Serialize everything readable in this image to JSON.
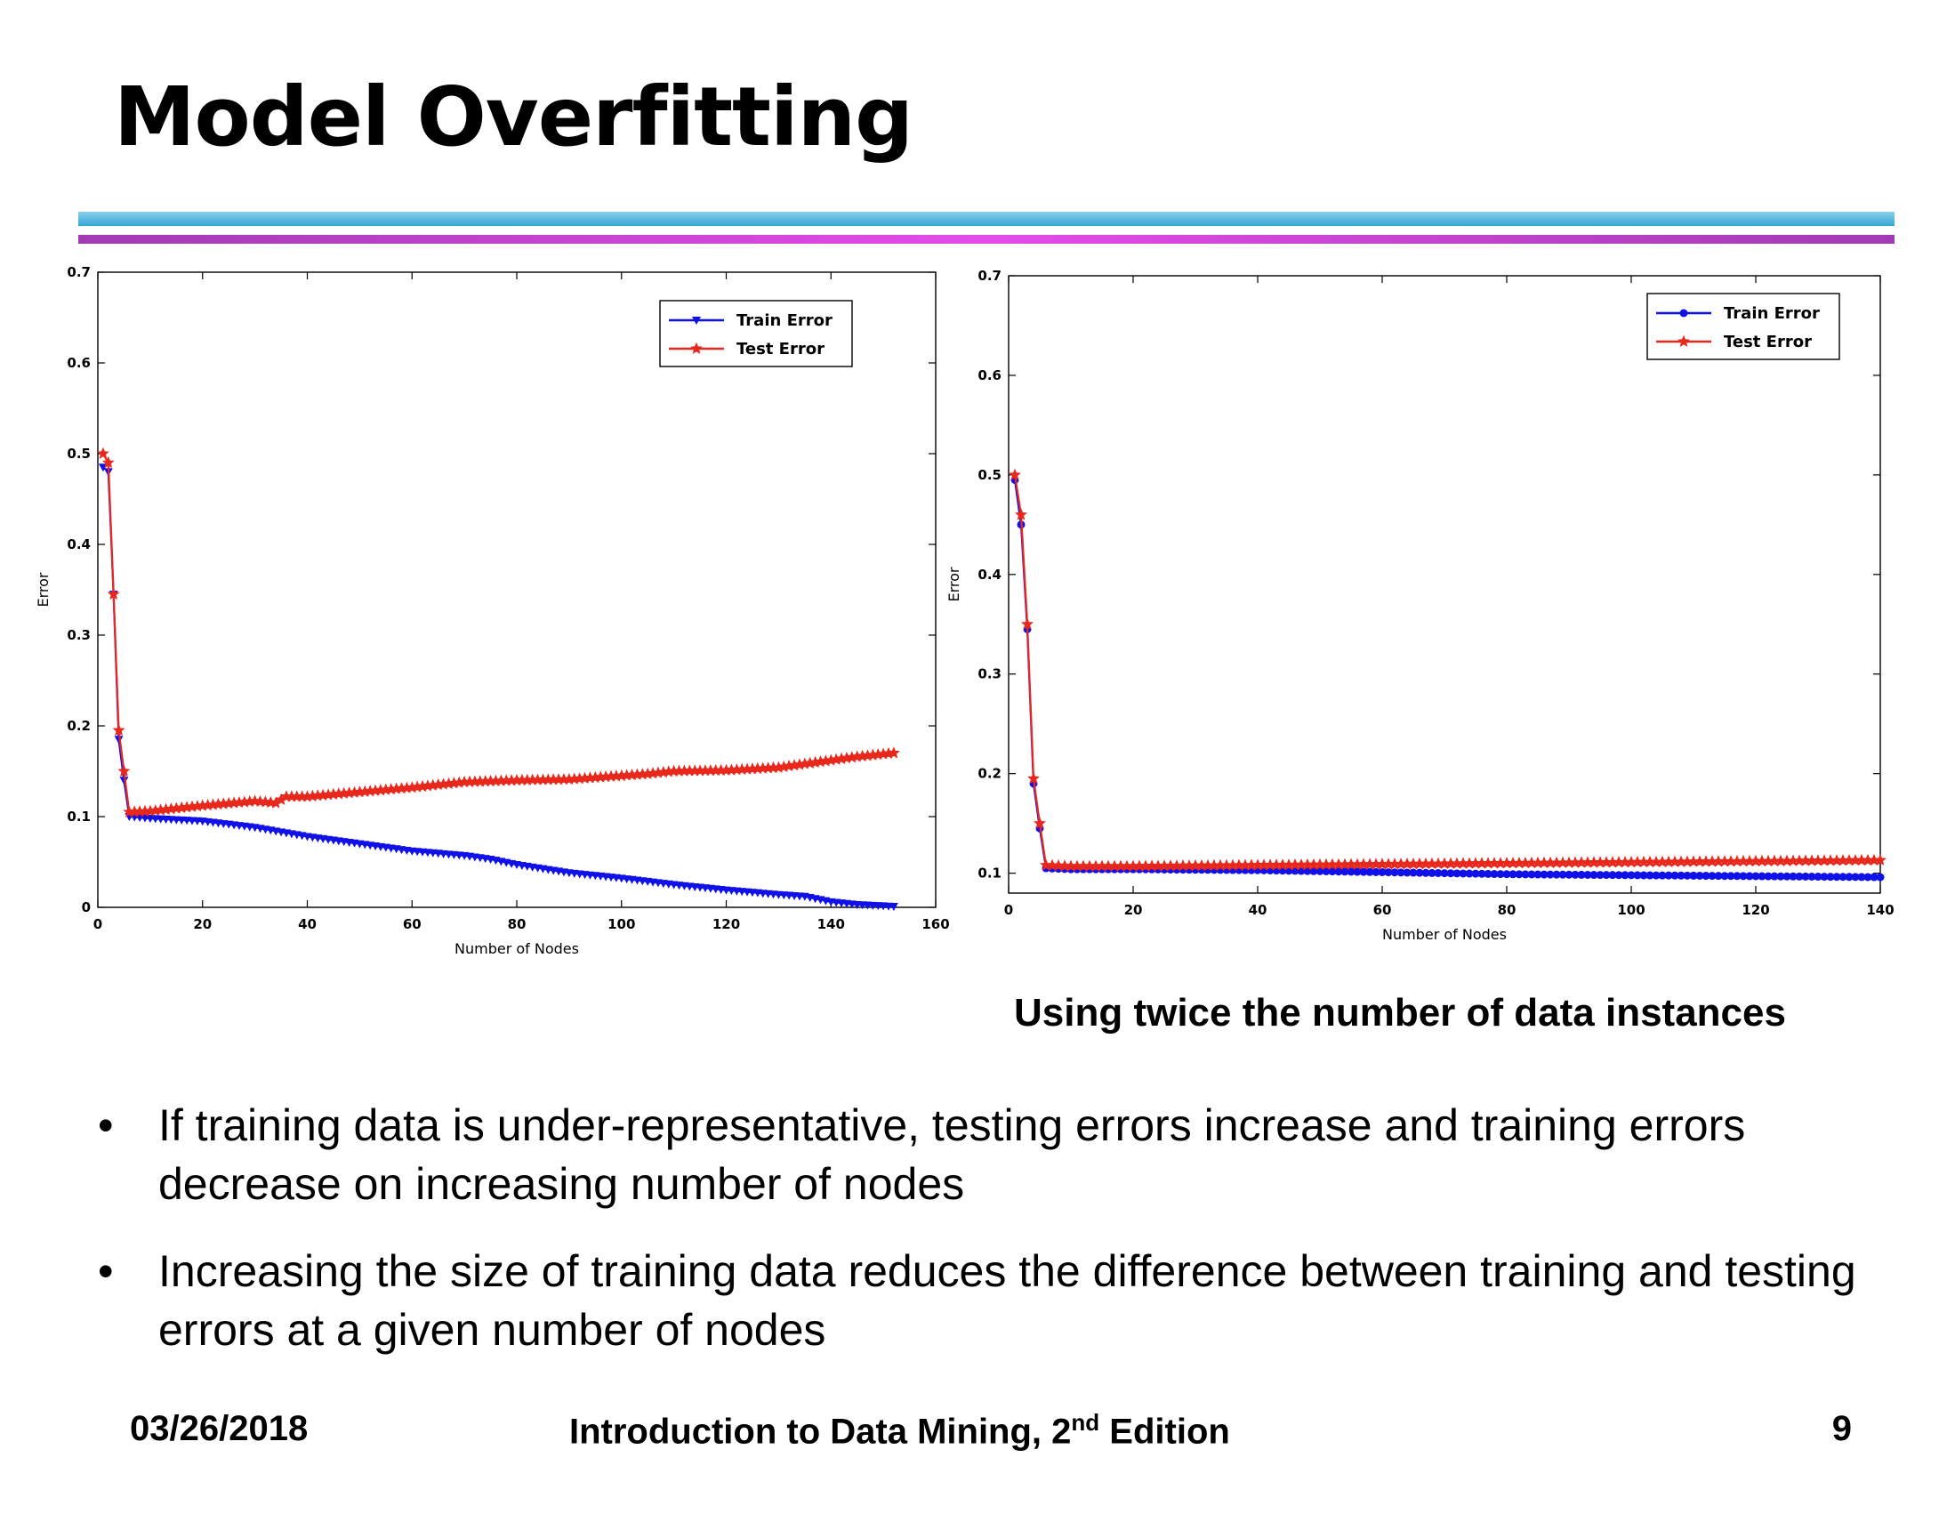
{
  "slide": {
    "title": "Model Overfitting",
    "caption": "Using twice the number of data instances",
    "bullets": [
      "If training data is under-representative, testing errors increase and training errors decrease on increasing number of nodes",
      "Increasing the size of training data reduces the difference between training and testing errors at a given number of nodes"
    ],
    "bullet_symbol": "•",
    "footer": {
      "date": "03/26/2018",
      "book_prefix": "Introduction to Data Mining, 2",
      "book_sup": "nd",
      "book_suffix": " Edition",
      "page": "9"
    }
  },
  "chart_data": [
    {
      "type": "line",
      "xlabel": "Number of Nodes",
      "ylabel": "Error",
      "xlim": [
        0,
        160
      ],
      "ylim": [
        0,
        0.7
      ],
      "xticks": [
        0,
        20,
        40,
        60,
        80,
        100,
        120,
        140,
        160
      ],
      "yticks": [
        0,
        0.1,
        0.2,
        0.3,
        0.4,
        0.5,
        0.6,
        0.7
      ],
      "grid": false,
      "legend_position": "top-right",
      "series": [
        {
          "name": "Train Error",
          "color": "#1010e8",
          "marker": "triangle-down",
          "points": [
            [
              1,
              0.485
            ],
            [
              2,
              0.48
            ],
            [
              3,
              0.345
            ],
            [
              4,
              0.185
            ],
            [
              5,
              0.14
            ],
            [
              6,
              0.1
            ],
            [
              10,
              0.098
            ],
            [
              20,
              0.095
            ],
            [
              30,
              0.088
            ],
            [
              40,
              0.078
            ],
            [
              50,
              0.07
            ],
            [
              60,
              0.062
            ],
            [
              70,
              0.057
            ],
            [
              75,
              0.053
            ],
            [
              80,
              0.047
            ],
            [
              90,
              0.038
            ],
            [
              100,
              0.032
            ],
            [
              110,
              0.025
            ],
            [
              120,
              0.019
            ],
            [
              130,
              0.014
            ],
            [
              135,
              0.012
            ],
            [
              140,
              0.006
            ],
            [
              145,
              0.003
            ],
            [
              152,
              0.001
            ]
          ]
        },
        {
          "name": "Test Error",
          "color": "#e8281c",
          "marker": "star",
          "points": [
            [
              1,
              0.5
            ],
            [
              2,
              0.49
            ],
            [
              3,
              0.345
            ],
            [
              4,
              0.195
            ],
            [
              5,
              0.15
            ],
            [
              6,
              0.105
            ],
            [
              10,
              0.106
            ],
            [
              20,
              0.112
            ],
            [
              30,
              0.117
            ],
            [
              34,
              0.115
            ],
            [
              36,
              0.122
            ],
            [
              40,
              0.122
            ],
            [
              50,
              0.127
            ],
            [
              60,
              0.132
            ],
            [
              70,
              0.138
            ],
            [
              80,
              0.14
            ],
            [
              90,
              0.141
            ],
            [
              100,
              0.145
            ],
            [
              105,
              0.147
            ],
            [
              110,
              0.15
            ],
            [
              120,
              0.151
            ],
            [
              130,
              0.154
            ],
            [
              140,
              0.162
            ],
            [
              145,
              0.166
            ],
            [
              152,
              0.17
            ]
          ]
        }
      ]
    },
    {
      "type": "line",
      "xlabel": "Number of Nodes",
      "ylabel": "Error",
      "xlim": [
        0,
        140
      ],
      "ylim": [
        0.08,
        0.7
      ],
      "xticks": [
        0,
        20,
        40,
        60,
        80,
        100,
        120,
        140
      ],
      "yticks": [
        0.1,
        0.2,
        0.3,
        0.4,
        0.5,
        0.6,
        0.7
      ],
      "grid": false,
      "legend_position": "top-right",
      "series": [
        {
          "name": "Train Error",
          "color": "#1010e8",
          "marker": "dot",
          "points": [
            [
              1,
              0.495
            ],
            [
              2,
              0.45
            ],
            [
              3,
              0.345
            ],
            [
              4,
              0.19
            ],
            [
              5,
              0.145
            ],
            [
              6,
              0.105
            ],
            [
              10,
              0.104
            ],
            [
              20,
              0.104
            ],
            [
              40,
              0.103
            ],
            [
              60,
              0.101
            ],
            [
              80,
              0.099
            ],
            [
              100,
              0.098
            ],
            [
              120,
              0.097
            ],
            [
              140,
              0.096
            ]
          ]
        },
        {
          "name": "Test Error",
          "color": "#e8281c",
          "marker": "star",
          "points": [
            [
              1,
              0.5
            ],
            [
              2,
              0.46
            ],
            [
              3,
              0.35
            ],
            [
              4,
              0.195
            ],
            [
              5,
              0.15
            ],
            [
              6,
              0.108
            ],
            [
              10,
              0.107
            ],
            [
              20,
              0.107
            ],
            [
              40,
              0.108
            ],
            [
              60,
              0.109
            ],
            [
              80,
              0.11
            ],
            [
              100,
              0.111
            ],
            [
              120,
              0.112
            ],
            [
              140,
              0.113
            ]
          ]
        }
      ]
    }
  ]
}
